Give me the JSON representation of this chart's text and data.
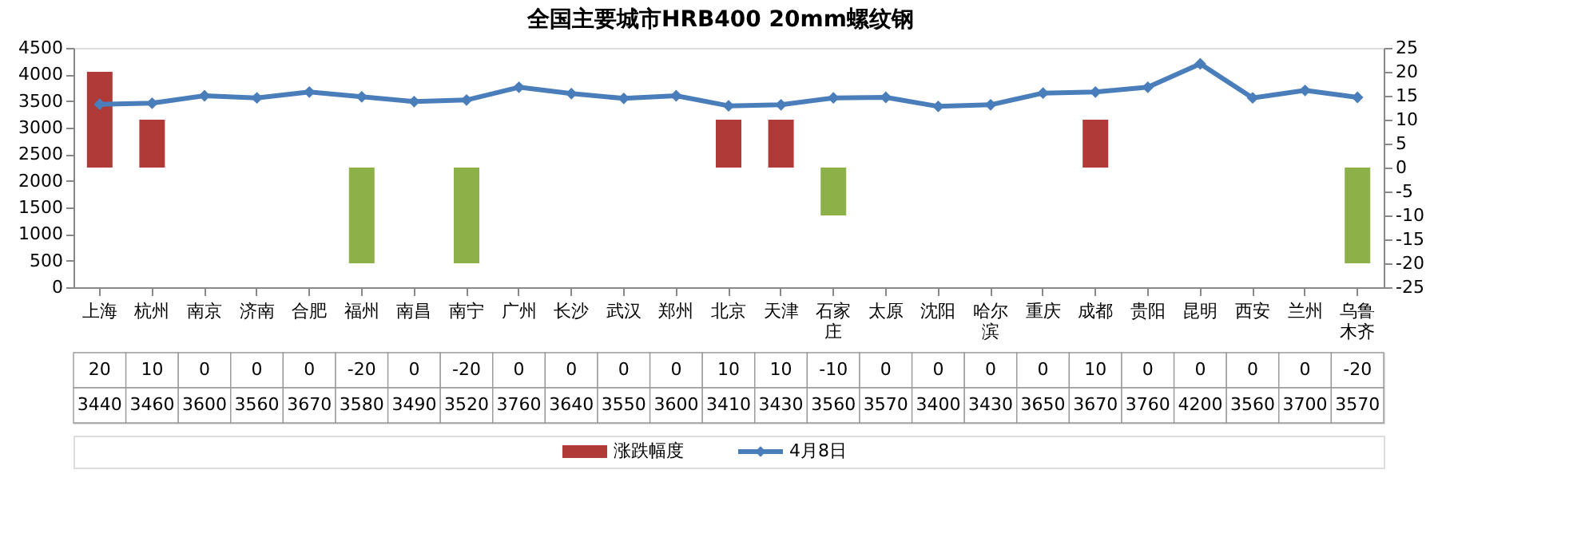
{
  "chart_data": {
    "type": "bar",
    "title": "全国主要城市HRB400 20mm螺纹钢",
    "categories": [
      "上海",
      "杭州",
      "南京",
      "济南",
      "合肥",
      "福州",
      "南昌",
      "南宁",
      "广州",
      "长沙",
      "武汉",
      "郑州",
      "北京",
      "天津",
      "石家庄",
      "太原",
      "沈阳",
      "哈尔滨",
      "重庆",
      "成都",
      "贵阳",
      "昆明",
      "西安",
      "兰州",
      "乌鲁木齐"
    ],
    "series": [
      {
        "name": "涨跌幅度",
        "axis": "y2",
        "color": "#b03a37",
        "colors": [
          "#b03a37",
          "#b03a37",
          "#b03a37",
          "#b03a37",
          "#b03a37",
          "#8db048",
          "#b03a37",
          "#8db048",
          "#b03a37",
          "#b03a37",
          "#b03a37",
          "#b03a37",
          "#b03a37",
          "#b03a37",
          "#8db048",
          "#b03a37",
          "#b03a37",
          "#b03a37",
          "#b03a37",
          "#b03a37",
          "#b03a37",
          "#b03a37",
          "#b03a37",
          "#b03a37",
          "#8db048"
        ],
        "values": [
          20,
          10,
          0,
          0,
          0,
          -20,
          0,
          -20,
          0,
          0,
          0,
          0,
          10,
          10,
          -10,
          0,
          0,
          0,
          0,
          10,
          0,
          0,
          0,
          0,
          -20
        ]
      },
      {
        "name": "4月8日",
        "type": "line",
        "color": "#4a7ebb",
        "values": [
          3440,
          3460,
          3600,
          3560,
          3670,
          3580,
          3490,
          3520,
          3760,
          3640,
          3550,
          3600,
          3410,
          3430,
          3560,
          3570,
          3400,
          3430,
          3650,
          3670,
          3760,
          4200,
          3560,
          3700,
          3570
        ]
      }
    ],
    "ylim": [
      0,
      4500
    ],
    "yticks": [
      0,
      500,
      1000,
      1500,
      2000,
      2500,
      3000,
      3500,
      4000,
      4500
    ],
    "y2lim": [
      -25,
      25
    ],
    "y2ticks": [
      -25,
      -20,
      -15,
      -10,
      -5,
      0,
      5,
      10,
      15,
      20,
      25
    ],
    "marker": "diamond",
    "line_style": "solid",
    "grid": false,
    "data_labels": true,
    "legend": "bottom"
  }
}
